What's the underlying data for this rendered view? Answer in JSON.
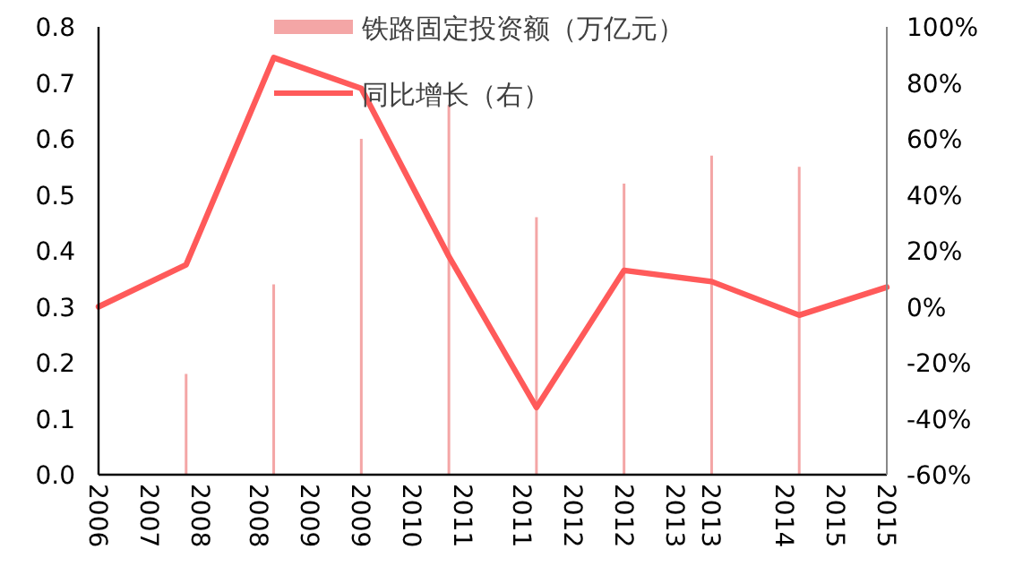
{
  "chart_data": {
    "type": "bar",
    "x": [
      "2006-12",
      "2007-12",
      "2008-12",
      "2009-12",
      "2010-12",
      "2011-12",
      "2012-12",
      "2013-12",
      "2014-12",
      "2015-12"
    ],
    "series": [
      {
        "name": "铁路固定投资额（万亿元）",
        "type": "bar",
        "color": "#f4a6a6",
        "values": [
          null,
          0.18,
          0.34,
          0.6,
          0.66,
          0.46,
          0.52,
          0.57,
          0.55,
          null
        ]
      },
      {
        "name": "同比增长（右）",
        "type": "line",
        "axis": "y2",
        "color": "#ff5a5a",
        "values": [
          0,
          15,
          89,
          78,
          18,
          -36,
          13,
          9,
          -3,
          7
        ]
      }
    ],
    "xlim": [
      "2006-12",
      "2015-12"
    ],
    "xticks": [
      {
        "value": "2006-12",
        "label": "2006"
      },
      {
        "value": "2007-07",
        "label": "2007"
      },
      {
        "value": "2008-02",
        "label": "2008"
      },
      {
        "value": "2008-10",
        "label": "2008"
      },
      {
        "value": "2009-05",
        "label": "2009"
      },
      {
        "value": "2009-12",
        "label": "2009"
      },
      {
        "value": "2010-07",
        "label": "2010"
      },
      {
        "value": "2011-02",
        "label": "2011"
      },
      {
        "value": "2011-10",
        "label": "2011"
      },
      {
        "value": "2012-05",
        "label": "2012"
      },
      {
        "value": "2012-12",
        "label": "2012"
      },
      {
        "value": "2013-07",
        "label": "2013"
      },
      {
        "value": "2013-12",
        "label": "2013"
      },
      {
        "value": "2014-10",
        "label": "2014"
      },
      {
        "value": "2015-05",
        "label": "2015"
      },
      {
        "value": "2015-12",
        "label": "2015"
      }
    ],
    "ylim": [
      0,
      0.8
    ],
    "yticks": [
      {
        "value": 0,
        "label": "0.0"
      },
      0.1,
      0.2,
      0.3,
      0.4,
      0.5,
      0.6,
      0.7,
      0.8
    ],
    "y2lim": [
      -60,
      100
    ],
    "y2ticks": [
      {
        "value": -60,
        "label": "-60%"
      },
      {
        "value": -40,
        "label": "-40%"
      },
      {
        "value": -20,
        "label": "-20%"
      },
      {
        "value": 0,
        "label": "0%"
      },
      {
        "value": 20,
        "label": "20%"
      },
      {
        "value": 40,
        "label": "40%"
      },
      {
        "value": 60,
        "label": "60%"
      },
      {
        "value": 80,
        "label": "80%"
      },
      {
        "value": 100,
        "label": "100%"
      }
    ],
    "grid": false,
    "legend": "top"
  }
}
